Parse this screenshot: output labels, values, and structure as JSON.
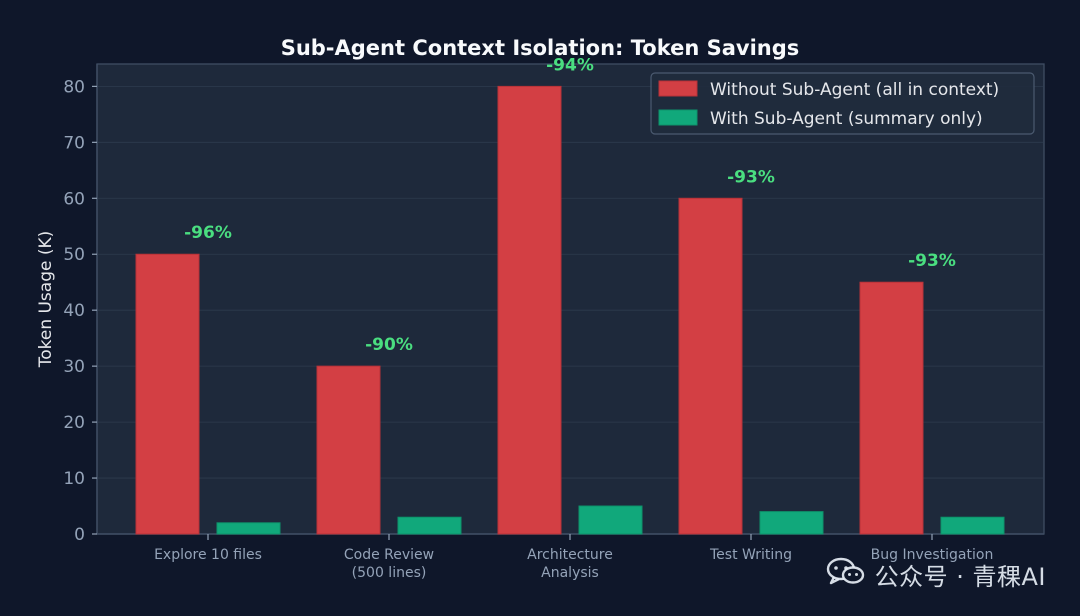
{
  "chart_data": {
    "type": "bar",
    "title": "Sub-Agent Context Isolation: Token Savings",
    "xlabel": "",
    "ylabel": "Token Usage (K)",
    "ylim": [
      0,
      84
    ],
    "yticks": [
      0,
      10,
      20,
      30,
      40,
      50,
      60,
      70,
      80
    ],
    "grid": true,
    "legend_position": "top-right",
    "categories": [
      [
        "Explore 10 files"
      ],
      [
        "Code Review",
        "(500 lines)"
      ],
      [
        "Architecture",
        "Analysis"
      ],
      [
        "Test Writing"
      ],
      [
        "Bug Investigation"
      ]
    ],
    "series": [
      {
        "name": "Without Sub-Agent (all in context)",
        "color": "#d33f44",
        "values": [
          50,
          30,
          80,
          60,
          45
        ]
      },
      {
        "name": "With Sub-Agent (summary only)",
        "color": "#11a87b",
        "values": [
          2,
          3,
          5,
          4,
          3
        ]
      }
    ],
    "annotations": [
      "-96%",
      "-90%",
      "-94%",
      "-93%",
      "-93%"
    ],
    "annotation_color": "#4ade80"
  },
  "watermark": {
    "text": "公众号 · 青稞AI",
    "icon": "wechat-icon"
  },
  "colors": {
    "page_background": "#0f172a",
    "plot_background": "#1e293b",
    "grid": "#334155",
    "text": "#e5e7eb",
    "tick_text": "#94a3b8"
  }
}
